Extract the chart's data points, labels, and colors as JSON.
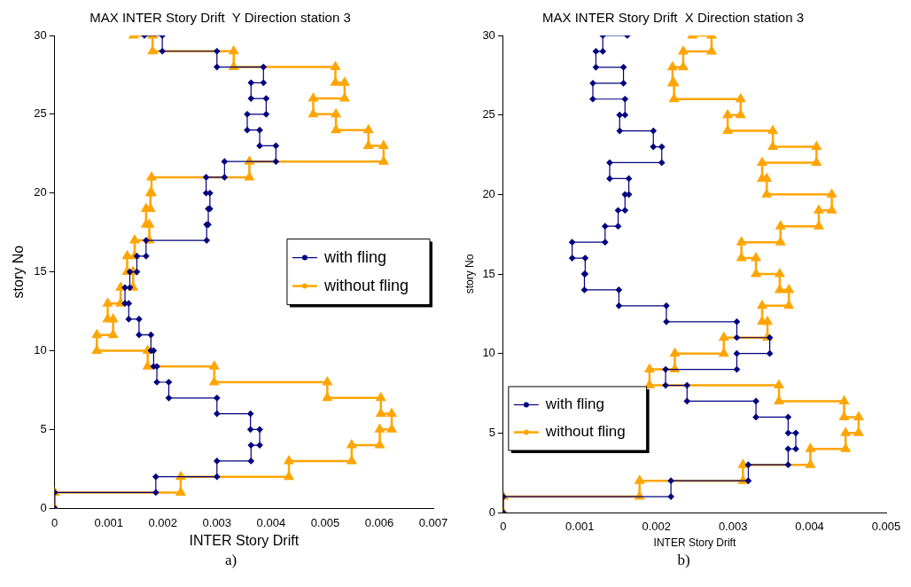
{
  "chart_data": [
    {
      "type": "line",
      "title": "MAX INTER Story Drift  Y Direction station 3",
      "xlabel": "INTER Story Drift",
      "ylabel": "story No",
      "xlim": [
        0,
        0.007
      ],
      "xticks": [
        0,
        0.001,
        0.002,
        0.003,
        0.004,
        0.005,
        0.006,
        0.007
      ],
      "ylim": [
        0,
        30
      ],
      "yticks": [
        0,
        5,
        10,
        15,
        20,
        25,
        30
      ],
      "grid": false,
      "legend": "right",
      "annotations": [
        "a)"
      ],
      "series": [
        {
          "name": "with fling",
          "color": "#000080",
          "marker": "diamond",
          "x": [
            0,
            0,
            0.00187,
            0.00187,
            0.003,
            0.003,
            0.00363,
            0.00363,
            0.00379,
            0.00379,
            0.00362,
            0.00362,
            0.003,
            0.003,
            0.00211,
            0.00211,
            0.00189,
            0.00189,
            0.00183,
            0.00183,
            0.00178,
            0.00178,
            0.00156,
            0.00156,
            0.00137,
            0.00137,
            0.0013,
            0.0013,
            0.00139,
            0.00139,
            0.00152,
            0.00152,
            0.00169,
            0.00169,
            0.00281,
            0.00281,
            0.00284,
            0.00284,
            0.00287,
            0.00287,
            0.0028,
            0.0028,
            0.00314,
            0.00314,
            0.00409,
            0.00409,
            0.00379,
            0.00379,
            0.00356,
            0.00356,
            0.00391,
            0.00391,
            0.00363,
            0.00363,
            0.00386,
            0.00386,
            0.003,
            0.003,
            0.00199,
            0.00199,
            0.00166
          ],
          "values": [
            0,
            1,
            1,
            2,
            2,
            3,
            3,
            4,
            4,
            5,
            5,
            6,
            6,
            7,
            7,
            8,
            8,
            9,
            9,
            10,
            10,
            11,
            11,
            12,
            12,
            13,
            13,
            14,
            14,
            15,
            15,
            16,
            16,
            17,
            17,
            18,
            18,
            19,
            19,
            20,
            20,
            21,
            21,
            22,
            22,
            23,
            23,
            24,
            24,
            25,
            25,
            26,
            26,
            27,
            27,
            28,
            28,
            29,
            29,
            30,
            30
          ]
        },
        {
          "name": "without fling",
          "color": "#ffa500",
          "marker": "triangle",
          "x": [
            0,
            0,
            0.00233,
            0.00233,
            0.00433,
            0.00433,
            0.00549,
            0.00549,
            0.00601,
            0.00601,
            0.00623,
            0.00623,
            0.00603,
            0.00603,
            0.00504,
            0.00504,
            0.00295,
            0.00295,
            0.00172,
            0.00172,
            0.00078,
            0.00078,
            0.00108,
            0.00108,
            0.00098,
            0.00098,
            0.00122,
            0.00122,
            0.00145,
            0.00145,
            0.00134,
            0.00134,
            0.00148,
            0.00148,
            0.00175,
            0.00175,
            0.00169,
            0.00169,
            0.00177,
            0.00177,
            0.00179,
            0.00179,
            0.0036,
            0.0036,
            0.00608,
            0.00608,
            0.0058,
            0.0058,
            0.0052,
            0.0052,
            0.00478,
            0.00478,
            0.00536,
            0.00536,
            0.00519,
            0.00519,
            0.00331,
            0.00331,
            0.00181,
            0.00181,
            0.00146
          ],
          "values": [
            0,
            1,
            1,
            2,
            2,
            3,
            3,
            4,
            4,
            5,
            5,
            6,
            6,
            7,
            7,
            8,
            8,
            9,
            9,
            10,
            10,
            11,
            11,
            12,
            12,
            13,
            13,
            14,
            14,
            15,
            15,
            16,
            16,
            17,
            17,
            18,
            18,
            19,
            19,
            20,
            20,
            21,
            21,
            22,
            22,
            23,
            23,
            24,
            24,
            25,
            25,
            26,
            26,
            27,
            27,
            28,
            28,
            29,
            29,
            30,
            30
          ]
        }
      ]
    },
    {
      "type": "line",
      "title": "MAX INTER Story Drift  X Direction station 3",
      "xlabel": "INTER Story Drift",
      "ylabel": "story No",
      "xlim": [
        0,
        0.005
      ],
      "xticks": [
        0,
        0.001,
        0.002,
        0.003,
        0.004,
        0.005
      ],
      "ylim": [
        0,
        30
      ],
      "yticks": [
        0,
        5,
        10,
        15,
        20,
        25,
        30
      ],
      "grid": false,
      "legend": "bottom left",
      "annotations": [
        "b)"
      ],
      "series": [
        {
          "name": "with fling",
          "color": "#000080",
          "marker": "diamond",
          "x": [
            0,
            0,
            0.00219,
            0.00219,
            0.0032,
            0.0032,
            0.00372,
            0.00372,
            0.00382,
            0.00382,
            0.00372,
            0.00372,
            0.0033,
            0.0033,
            0.0024,
            0.0024,
            0.00212,
            0.00212,
            0.00305,
            0.00305,
            0.00348,
            0.00348,
            0.00305,
            0.00305,
            0.00213,
            0.00213,
            0.00151,
            0.00151,
            0.00106,
            0.00106,
            0.00107,
            0.00107,
            0.0009,
            0.0009,
            0.00133,
            0.00133,
            0.0015,
            0.0015,
            0.00159,
            0.00159,
            0.00164,
            0.00164,
            0.00139,
            0.00139,
            0.00207,
            0.00207,
            0.00196,
            0.00196,
            0.00152,
            0.00152,
            0.00159,
            0.00159,
            0.00117,
            0.00117,
            0.00157,
            0.00157,
            0.00121,
            0.00121,
            0.0013,
            0.0013,
            0.00162
          ],
          "values": [
            0,
            1,
            1,
            2,
            2,
            3,
            3,
            4,
            4,
            5,
            5,
            6,
            6,
            7,
            7,
            8,
            8,
            9,
            9,
            10,
            10,
            11,
            11,
            12,
            12,
            13,
            13,
            14,
            14,
            15,
            15,
            16,
            16,
            17,
            17,
            18,
            18,
            19,
            19,
            20,
            20,
            21,
            21,
            22,
            22,
            23,
            23,
            24,
            24,
            25,
            25,
            26,
            26,
            27,
            27,
            28,
            28,
            29,
            29,
            30,
            30
          ]
        },
        {
          "name": "without fling",
          "color": "#ffa500",
          "marker": "triangle",
          "x": [
            0,
            0,
            0.00178,
            0.00178,
            0.00313,
            0.00313,
            0.00401,
            0.00401,
            0.00447,
            0.00447,
            0.00464,
            0.00464,
            0.00445,
            0.00445,
            0.0036,
            0.0036,
            0.00191,
            0.00191,
            0.00224,
            0.00224,
            0.00288,
            0.00288,
            0.00345,
            0.00345,
            0.00338,
            0.00338,
            0.00373,
            0.00373,
            0.00361,
            0.00361,
            0.0033,
            0.0033,
            0.00311,
            0.00311,
            0.00362,
            0.00362,
            0.00412,
            0.00412,
            0.00429,
            0.00429,
            0.00344,
            0.00344,
            0.00338,
            0.00338,
            0.00409,
            0.00409,
            0.00352,
            0.00352,
            0.00293,
            0.00293,
            0.0031,
            0.0031,
            0.00223,
            0.00223,
            0.00221,
            0.00221,
            0.00235,
            0.00235,
            0.00272,
            0.00272,
            0.00247
          ],
          "values": [
            0,
            1,
            1,
            2,
            2,
            3,
            3,
            4,
            4,
            5,
            5,
            6,
            6,
            7,
            7,
            8,
            8,
            9,
            9,
            10,
            10,
            11,
            11,
            12,
            12,
            13,
            13,
            14,
            14,
            15,
            15,
            16,
            16,
            17,
            17,
            18,
            18,
            19,
            19,
            20,
            20,
            21,
            21,
            22,
            22,
            23,
            23,
            24,
            24,
            25,
            25,
            26,
            26,
            27,
            27,
            28,
            28,
            29,
            29,
            30,
            30
          ]
        }
      ]
    }
  ]
}
